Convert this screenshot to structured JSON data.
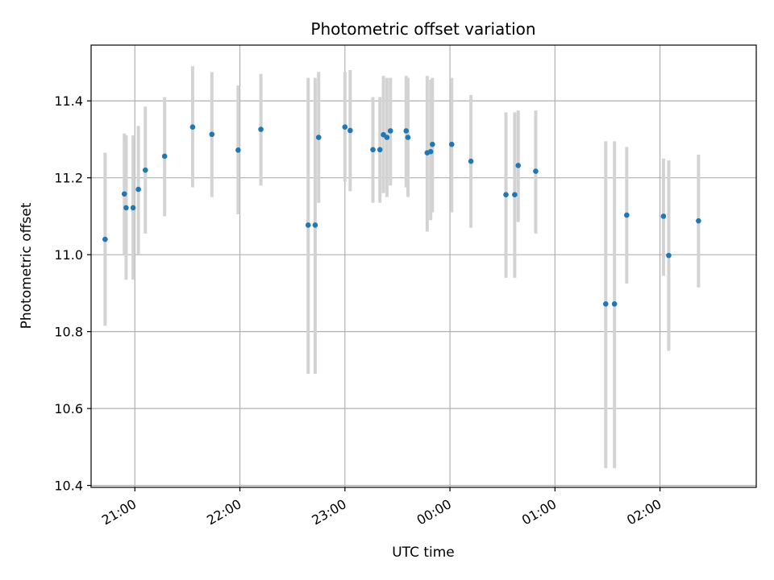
{
  "chart_data": {
    "type": "scatter",
    "title": "Photometric offset variation",
    "xlabel": "UTC time",
    "ylabel": "Photometric offset",
    "x_unit": "UTC time (HH:MM)",
    "xlim": [
      "20:35",
      "02:55"
    ],
    "ylim": [
      10.395,
      11.545
    ],
    "yticks": [
      10.4,
      10.6,
      10.8,
      11.0,
      11.2,
      11.4
    ],
    "ytick_labels": [
      "10.4",
      "10.6",
      "10.8",
      "11.0",
      "11.2",
      "11.4"
    ],
    "xticks": [
      "21:00",
      "22:00",
      "23:00",
      "00:00",
      "01:00",
      "02:00"
    ],
    "grid": true,
    "legend": "none",
    "colors": {
      "points": "#1f77b4",
      "errorbars": "#d3d3d3",
      "grid": "#b0b0b0"
    },
    "points": [
      {
        "x": "20:43",
        "y": 11.04,
        "err_low": 10.815,
        "err_high": 11.265
      },
      {
        "x": "20:54",
        "y": 11.158,
        "err_low": 11.0,
        "err_high": 11.315
      },
      {
        "x": "20:55",
        "y": 11.122,
        "err_low": 10.935,
        "err_high": 11.31
      },
      {
        "x": "20:59",
        "y": 11.122,
        "err_low": 10.935,
        "err_high": 11.31
      },
      {
        "x": "21:02",
        "y": 11.17,
        "err_low": 11.0,
        "err_high": 11.335
      },
      {
        "x": "21:06",
        "y": 11.22,
        "err_low": 11.055,
        "err_high": 11.385
      },
      {
        "x": "21:17",
        "y": 11.256,
        "err_low": 11.1,
        "err_high": 11.41
      },
      {
        "x": "21:33",
        "y": 11.332,
        "err_low": 11.175,
        "err_high": 11.49
      },
      {
        "x": "21:44",
        "y": 11.313,
        "err_low": 11.15,
        "err_high": 11.475
      },
      {
        "x": "21:59",
        "y": 11.272,
        "err_low": 11.105,
        "err_high": 11.44
      },
      {
        "x": "22:12",
        "y": 11.326,
        "err_low": 11.18,
        "err_high": 11.47
      },
      {
        "x": "22:39",
        "y": 11.077,
        "err_low": 10.69,
        "err_high": 11.46
      },
      {
        "x": "22:43",
        "y": 11.077,
        "err_low": 10.69,
        "err_high": 11.46
      },
      {
        "x": "22:45",
        "y": 11.305,
        "err_low": 11.135,
        "err_high": 11.475
      },
      {
        "x": "23:00",
        "y": 11.332,
        "err_low": 11.19,
        "err_high": 11.475
      },
      {
        "x": "23:03",
        "y": 11.323,
        "err_low": 11.165,
        "err_high": 11.48
      },
      {
        "x": "23:16",
        "y": 11.273,
        "err_low": 11.135,
        "err_high": 11.41
      },
      {
        "x": "23:20",
        "y": 11.273,
        "err_low": 11.135,
        "err_high": 11.41
      },
      {
        "x": "23:22",
        "y": 11.312,
        "err_low": 11.16,
        "err_high": 11.465
      },
      {
        "x": "23:24",
        "y": 11.305,
        "err_low": 11.15,
        "err_high": 11.46
      },
      {
        "x": "23:26",
        "y": 11.322,
        "err_low": 11.18,
        "err_high": 11.46
      },
      {
        "x": "23:35",
        "y": 11.322,
        "err_low": 11.175,
        "err_high": 11.465
      },
      {
        "x": "23:36",
        "y": 11.305,
        "err_low": 11.15,
        "err_high": 11.46
      },
      {
        "x": "23:47",
        "y": 11.265,
        "err_low": 11.06,
        "err_high": 11.465
      },
      {
        "x": "23:49",
        "y": 11.268,
        "err_low": 11.09,
        "err_high": 11.455
      },
      {
        "x": "23:50",
        "y": 11.287,
        "err_low": 11.11,
        "err_high": 11.46
      },
      {
        "x": "00:01",
        "y": 11.287,
        "err_low": 11.11,
        "err_high": 11.46
      },
      {
        "x": "00:12",
        "y": 11.243,
        "err_low": 11.07,
        "err_high": 11.415
      },
      {
        "x": "00:32",
        "y": 11.156,
        "err_low": 10.94,
        "err_high": 11.37
      },
      {
        "x": "00:37",
        "y": 11.156,
        "err_low": 10.94,
        "err_high": 11.37
      },
      {
        "x": "00:39",
        "y": 11.232,
        "err_low": 11.085,
        "err_high": 11.375
      },
      {
        "x": "00:49",
        "y": 11.217,
        "err_low": 11.055,
        "err_high": 11.375
      },
      {
        "x": "01:29",
        "y": 10.872,
        "err_low": 10.445,
        "err_high": 11.295
      },
      {
        "x": "01:34",
        "y": 10.872,
        "err_low": 10.445,
        "err_high": 11.295
      },
      {
        "x": "01:41",
        "y": 11.103,
        "err_low": 10.925,
        "err_high": 11.28
      },
      {
        "x": "02:02",
        "y": 11.1,
        "err_low": 10.945,
        "err_high": 11.25
      },
      {
        "x": "02:05",
        "y": 10.998,
        "err_low": 10.75,
        "err_high": 11.245
      },
      {
        "x": "02:22",
        "y": 11.088,
        "err_low": 10.915,
        "err_high": 11.26
      }
    ]
  }
}
